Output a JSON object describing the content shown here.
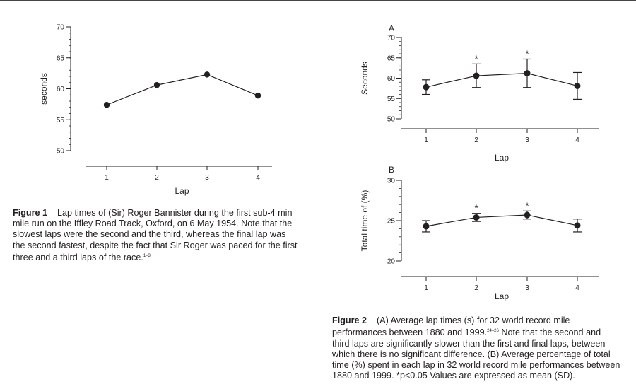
{
  "chart_data": [
    {
      "type": "line",
      "panel_label": "",
      "title": "",
      "xlabel": "Lap",
      "ylabel": "seconds",
      "x": [
        1,
        2,
        3,
        4
      ],
      "ylim": [
        50,
        70
      ],
      "y_ticks": [
        50,
        55,
        60,
        65,
        70
      ],
      "y_minor_step": 1,
      "grid": false,
      "legend": "none",
      "color": "#231f20",
      "series": [
        {
          "values": [
            57.4,
            60.6,
            62.3,
            58.9
          ]
        }
      ]
    },
    {
      "type": "line",
      "panel_label": "A",
      "title": "",
      "xlabel": "Lap",
      "ylabel": "Seconds",
      "x": [
        1,
        2,
        3,
        4
      ],
      "ylim": [
        50,
        70
      ],
      "y_ticks": [
        50,
        55,
        60,
        65,
        70
      ],
      "y_minor_step": 1,
      "grid": false,
      "legend": "none",
      "color": "#231f20",
      "series": [
        {
          "values": [
            57.8,
            60.6,
            61.2,
            58.1
          ],
          "error": [
            1.8,
            2.9,
            3.5,
            3.3
          ],
          "significance": [
            "",
            "*",
            "*",
            ""
          ]
        }
      ]
    },
    {
      "type": "line",
      "panel_label": "B",
      "title": "",
      "xlabel": "Lap",
      "ylabel": "Total time of (%)",
      "x": [
        1,
        2,
        3,
        4
      ],
      "ylim": [
        20,
        30
      ],
      "y_ticks": [
        20,
        25,
        30
      ],
      "y_minor_step": 1,
      "grid": false,
      "legend": "none",
      "color": "#231f20",
      "series": [
        {
          "values": [
            24.3,
            25.4,
            25.7,
            24.4
          ],
          "error": [
            0.7,
            0.5,
            0.5,
            0.8
          ],
          "significance": [
            "",
            "*",
            "*",
            ""
          ]
        }
      ]
    }
  ],
  "captions": {
    "fig1": {
      "label": "Figure 1",
      "lines": [
        "Lap times of (Sir) Roger Bannister during the first sub-4 min",
        "mile run on the Iffley Road Track, Oxford, on 6 May 1954. Note that the",
        "slowest laps were the second and the third, whereas the final lap was",
        "the second fastest, despite the fact that Sir Roger was paced for the first",
        "three and a third laps of the race."
      ],
      "ref": "1–3"
    },
    "fig2": {
      "label": "Figure 2",
      "lines": [
        "(A) Average lap times (s) for 32 world record mile",
        "performances between 1880 and 1999.",
        "Note that the second and",
        "third laps are significantly slower than the first and final laps, between",
        "which there is no significant difference. (B) Average percentage of total",
        "time (%) spent in each lap in 32 world record mile performances between",
        "1880 and 1999. *p<0.05 Values are expressed as mean (SD)."
      ],
      "ref": "24–26"
    }
  }
}
